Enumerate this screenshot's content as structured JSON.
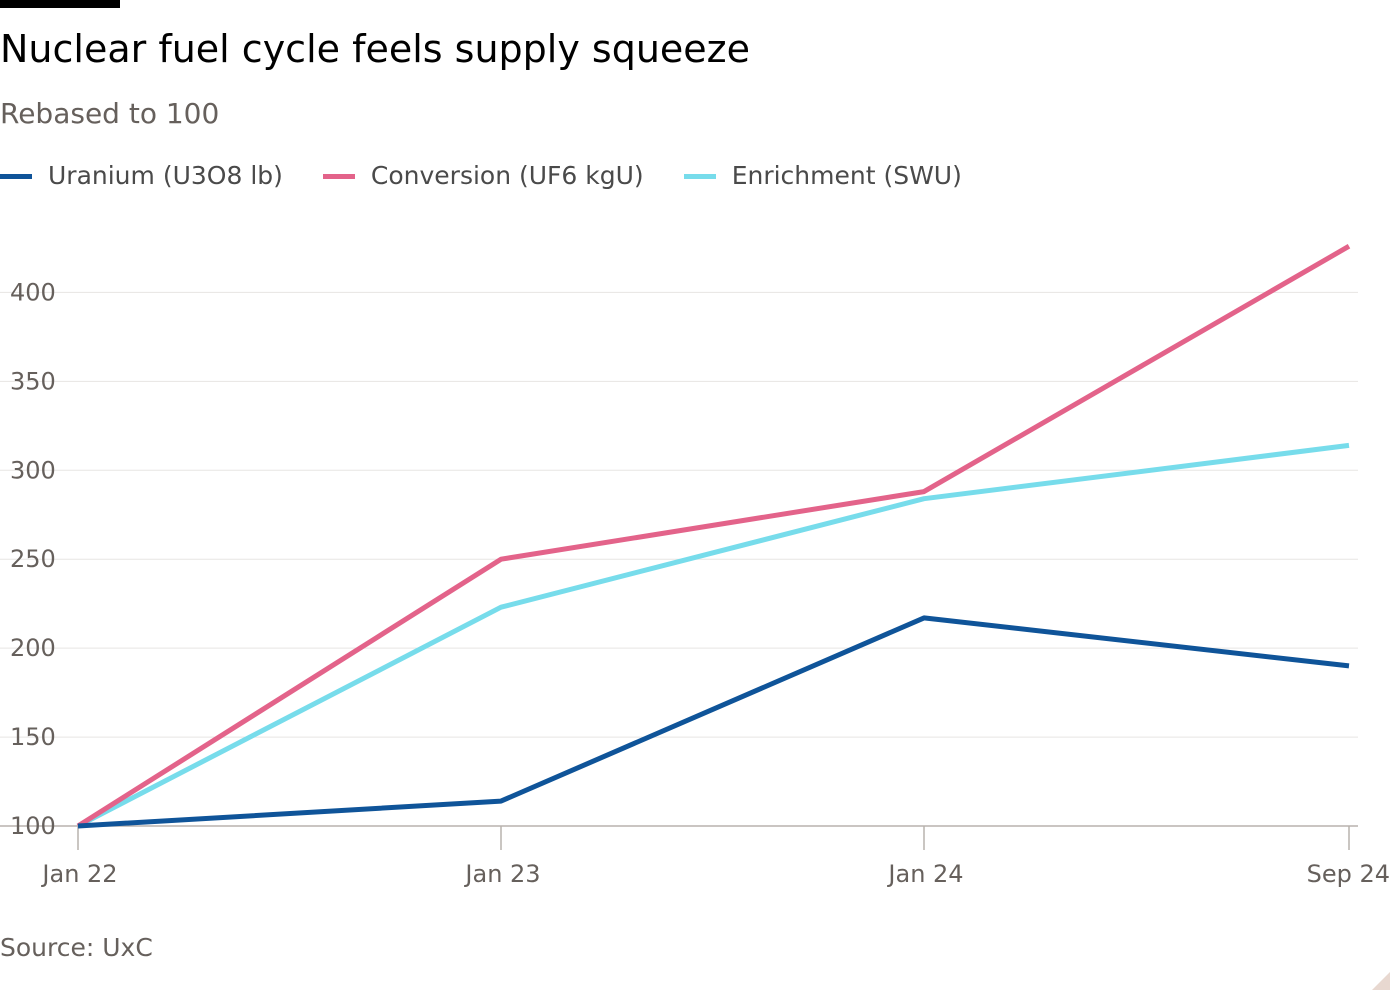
{
  "header": {
    "title": "Nuclear fuel cycle feels supply squeeze",
    "subtitle": "Rebased to 100"
  },
  "footer": {
    "source": "Source: UxC"
  },
  "colors": {
    "uranium": "#0f5499",
    "conversion": "#e3638a",
    "enrichment": "#77dceb",
    "grid": "#e7e5e3",
    "axis": "#b8b2ad",
    "text": "#66605c"
  },
  "chart_data": {
    "type": "line",
    "title": "Nuclear fuel cycle feels supply squeeze",
    "subtitle": "Rebased to 100",
    "x": [
      "2022-01",
      "2023-01",
      "2024-01",
      "2024-09"
    ],
    "x_tick_labels": [
      "Jan 22",
      "Jan 23",
      "Jan 24",
      "Sep 24"
    ],
    "ylim": [
      100,
      425
    ],
    "y_ticks": [
      100,
      150,
      200,
      250,
      300,
      350,
      400
    ],
    "grid": true,
    "legend_position": "top",
    "series": [
      {
        "name": "Uranium (U3O8 lb)",
        "color": "#0f5499",
        "values": [
          100,
          114,
          217,
          190
        ]
      },
      {
        "name": "Conversion (UF6 kgU)",
        "color": "#e3638a",
        "values": [
          100,
          250,
          288,
          426
        ]
      },
      {
        "name": "Enrichment (SWU)",
        "color": "#77dceb",
        "values": [
          100,
          223,
          284,
          314
        ]
      }
    ],
    "source": "Source: UxC"
  }
}
